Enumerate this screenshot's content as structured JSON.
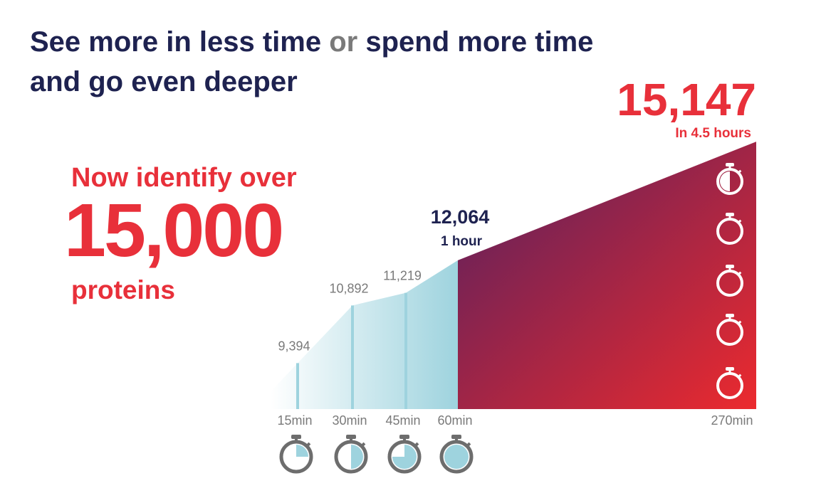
{
  "chart_data": {
    "type": "area",
    "title_segments": [
      "See more in less time",
      "or",
      "spend more time",
      "and go even deeper"
    ],
    "callout": {
      "lead": "Now identify over",
      "number": "15,000",
      "unit": "proteins"
    },
    "categories": [
      "15min",
      "30min",
      "45min",
      "60min",
      "270min"
    ],
    "values": [
      9394,
      10892,
      11219,
      12064,
      15147
    ],
    "value_labels": [
      "9,394",
      "10,892",
      "11,219",
      "12,064",
      "15,147"
    ],
    "annotations": [
      null,
      null,
      null,
      "1 hour",
      "In 4.5 hours"
    ],
    "ylim": [
      8200,
      15500
    ],
    "colors": {
      "text": "#1e2250",
      "accent": "#e8303a",
      "muted": "#7a7a7a",
      "short_run": "#9ed3de",
      "long_run_start": "#55205f",
      "long_run_end": "#ec2a2e"
    }
  }
}
